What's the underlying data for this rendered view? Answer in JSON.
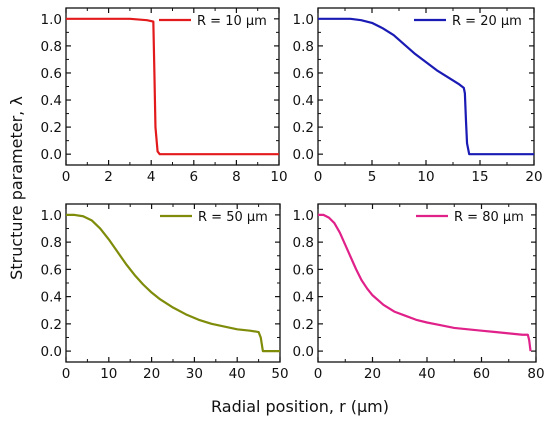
{
  "figure": {
    "ylabel": "Structure parameter, λ",
    "xlabel": "Radial position, r (μm)"
  },
  "chart_data": [
    {
      "type": "line",
      "panel": "top-left",
      "title": "",
      "xlim": [
        0,
        10
      ],
      "ylim": [
        -0.08,
        1.08
      ],
      "xticks": [
        0,
        2,
        4,
        6,
        8,
        10
      ],
      "yticks": [
        "0.0",
        "0.2",
        "0.4",
        "0.6",
        "0.8",
        "1.0"
      ],
      "grid": false,
      "legend_position": "top-right",
      "series": [
        {
          "name": "R = 10 μm",
          "color": "#e31a1c",
          "x": [
            0,
            1,
            2,
            3,
            3.8,
            4.1,
            4.15,
            4.2,
            4.3,
            4.4,
            5,
            6,
            8,
            10
          ],
          "y": [
            1.0,
            1.0,
            1.0,
            1.0,
            0.99,
            0.98,
            0.6,
            0.2,
            0.02,
            0.0,
            0.0,
            0.0,
            0.0,
            0.0
          ]
        }
      ]
    },
    {
      "type": "line",
      "panel": "top-right",
      "title": "",
      "xlim": [
        0,
        20
      ],
      "ylim": [
        -0.08,
        1.08
      ],
      "xticks": [
        0,
        5,
        10,
        15,
        20
      ],
      "yticks": [
        "0.0",
        "0.2",
        "0.4",
        "0.6",
        "0.8",
        "1.0"
      ],
      "grid": false,
      "legend_position": "top-right",
      "series": [
        {
          "name": "R = 20 μm",
          "color": "#1a1ab4",
          "x": [
            0,
            2,
            3,
            4,
            5,
            6,
            7,
            8,
            9,
            10,
            11,
            12,
            13,
            13.5,
            13.6,
            13.7,
            13.8,
            14.0,
            15,
            17,
            20
          ],
          "y": [
            1.0,
            1.0,
            1.0,
            0.99,
            0.97,
            0.93,
            0.88,
            0.81,
            0.74,
            0.68,
            0.62,
            0.57,
            0.52,
            0.49,
            0.45,
            0.25,
            0.08,
            0.0,
            0.0,
            0.0,
            0.0
          ]
        }
      ]
    },
    {
      "type": "line",
      "panel": "bottom-left",
      "title": "",
      "xlim": [
        0,
        50
      ],
      "ylim": [
        -0.08,
        1.08
      ],
      "xticks": [
        0,
        10,
        20,
        30,
        40,
        50
      ],
      "yticks": [
        "0.0",
        "0.2",
        "0.4",
        "0.6",
        "0.8",
        "1.0"
      ],
      "grid": false,
      "legend_position": "top-right",
      "series": [
        {
          "name": "R = 50 μm",
          "color": "#7f8c0a",
          "x": [
            0,
            2,
            4,
            6,
            8,
            10,
            12,
            14,
            16,
            18,
            20,
            22,
            25,
            28,
            31,
            34,
            37,
            40,
            43,
            45,
            45.5,
            46,
            48,
            50
          ],
          "y": [
            1.0,
            1.0,
            0.99,
            0.96,
            0.9,
            0.82,
            0.73,
            0.64,
            0.56,
            0.49,
            0.43,
            0.38,
            0.32,
            0.27,
            0.23,
            0.2,
            0.18,
            0.16,
            0.15,
            0.14,
            0.1,
            0.0,
            0.0,
            0.0
          ]
        }
      ]
    },
    {
      "type": "line",
      "panel": "bottom-right",
      "title": "",
      "xlim": [
        0,
        80
      ],
      "ylim": [
        -0.08,
        1.08
      ],
      "xticks": [
        0,
        20,
        40,
        60,
        80
      ],
      "yticks": [
        "0.0",
        "0.2",
        "0.4",
        "0.6",
        "0.8",
        "1.0"
      ],
      "grid": false,
      "legend_position": "top-right",
      "series": [
        {
          "name": "R = 80 μm",
          "color": "#e0218a",
          "x": [
            0,
            2,
            4,
            6,
            8,
            10,
            12,
            14,
            16,
            18,
            20,
            24,
            28,
            32,
            36,
            40,
            45,
            50,
            55,
            60,
            65,
            70,
            75,
            77,
            77.5,
            78
          ],
          "y": [
            1.0,
            1.0,
            0.98,
            0.94,
            0.87,
            0.78,
            0.69,
            0.6,
            0.52,
            0.46,
            0.41,
            0.34,
            0.29,
            0.26,
            0.23,
            0.21,
            0.19,
            0.17,
            0.16,
            0.15,
            0.14,
            0.13,
            0.12,
            0.12,
            0.08,
            0.0
          ]
        }
      ]
    }
  ]
}
